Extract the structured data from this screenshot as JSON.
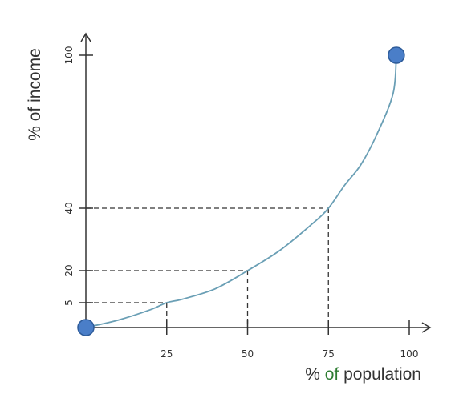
{
  "chart_data": {
    "type": "line",
    "xlabel": "% of population",
    "ylabel": "% of income",
    "x_ticks": [
      25,
      50,
      75,
      100
    ],
    "x_tick_labels": [
      "25",
      "50",
      "75",
      "100"
    ],
    "y_ticks": [
      5,
      20,
      40,
      100
    ],
    "y_tick_labels": [
      "5",
      "20",
      "40",
      "100"
    ],
    "xlim": [
      0,
      100
    ],
    "ylim": [
      0,
      100
    ],
    "series": [
      {
        "x": [
          0,
          10,
          20,
          25,
          30,
          40,
          50,
          60,
          70,
          75,
          80,
          85,
          90,
          95,
          96
        ],
        "y": [
          0,
          1.5,
          3.6,
          5,
          6.7,
          11.5,
          20,
          26.5,
          35,
          40,
          49,
          57,
          69,
          85,
          100
        ]
      }
    ],
    "endpoints": [
      {
        "x": 0,
        "y": 0
      },
      {
        "x": 96,
        "y": 100
      }
    ],
    "reference_points": [
      {
        "x": 25,
        "y": 5
      },
      {
        "x": 50,
        "y": 20
      },
      {
        "x": 75,
        "y": 40
      }
    ],
    "colors": {
      "axis": "#333333",
      "curve": "#6a9fb5",
      "marker_fill": "#4a7ec8",
      "marker_stroke": "#2e5c9a",
      "guide": "#333333",
      "axis_title_accent": "#2e7d32"
    }
  }
}
